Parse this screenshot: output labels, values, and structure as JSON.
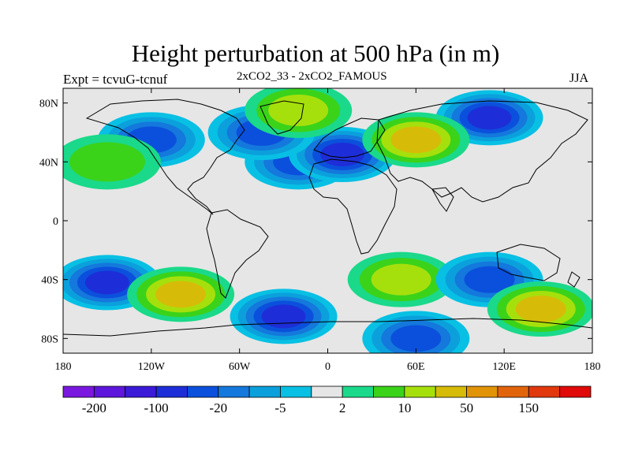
{
  "figure": {
    "title": "Height perturbation at 500 hPa (in m)",
    "left_label": "Expt = tcvuG-tcnuf",
    "center_label": "2xCO2_33 - 2xCO2_FAMOUS",
    "right_label": "JJA"
  },
  "map": {
    "projection": "cylindrical-equidistant",
    "lon_range": [
      -180,
      180
    ],
    "lat_range": [
      -90,
      90
    ],
    "background_color": "#e6e6e6",
    "lon_ticks": [
      {
        "value": -180,
        "label": "180"
      },
      {
        "value": -120,
        "label": "120W"
      },
      {
        "value": -60,
        "label": "60W"
      },
      {
        "value": 0,
        "label": "0"
      },
      {
        "value": 60,
        "label": "60E"
      },
      {
        "value": 120,
        "label": "120E"
      },
      {
        "value": 180,
        "label": "180"
      }
    ],
    "lat_ticks": [
      {
        "value": 80,
        "label": "80N"
      },
      {
        "value": 40,
        "label": "40N"
      },
      {
        "value": 0,
        "label": "0"
      },
      {
        "value": -40,
        "label": "40S"
      },
      {
        "value": -80,
        "label": "80S"
      }
    ]
  },
  "colorbar": {
    "colors": [
      "#7a18e0",
      "#5d16dc",
      "#3b1ad8",
      "#1d2ed8",
      "#0b50dc",
      "#1478dc",
      "#0ba0dc",
      "#08c0e4",
      "#e6e6e6",
      "#1ad98a",
      "#3bd21a",
      "#a6e00c",
      "#d6bc08",
      "#e29408",
      "#e2640a",
      "#e2380e",
      "#e00a0a"
    ],
    "labels": [
      "-200",
      "-100",
      "-20",
      "-5",
      "2",
      "10",
      "50",
      "150"
    ],
    "label_boundaries": [
      1,
      3,
      5,
      7,
      9,
      11,
      13,
      15
    ]
  },
  "features": [
    {
      "name": "nw-europe-low",
      "lon": -20,
      "lat": 40,
      "value": -30
    },
    {
      "name": "central-europe-low",
      "lon": 10,
      "lat": 45,
      "value": -60
    },
    {
      "name": "siberia-low",
      "lon": 110,
      "lat": 70,
      "value": -60
    },
    {
      "name": "n-america-low",
      "lon": -120,
      "lat": 55,
      "value": -20
    },
    {
      "name": "n-atlantic-low",
      "lon": -45,
      "lat": 60,
      "value": -20
    },
    {
      "name": "central-asia-high",
      "lon": 60,
      "lat": 55,
      "value": 40
    },
    {
      "name": "n-pacific-high",
      "lon": -150,
      "lat": 40,
      "value": 8
    },
    {
      "name": "arctic-high",
      "lon": -20,
      "lat": 75,
      "value": 10
    },
    {
      "name": "s-pacific-low",
      "lon": -150,
      "lat": -42,
      "value": -60
    },
    {
      "name": "s-america-high",
      "lon": -100,
      "lat": -50,
      "value": 40
    },
    {
      "name": "s-atlantic-low",
      "lon": -30,
      "lat": -65,
      "value": -60
    },
    {
      "name": "s-indian-high",
      "lon": 50,
      "lat": -40,
      "value": 12
    },
    {
      "name": "australia-low",
      "lon": 110,
      "lat": -40,
      "value": -30
    },
    {
      "name": "s-pacific-east-high",
      "lon": 145,
      "lat": -60,
      "value": 45
    },
    {
      "name": "antarctic-low",
      "lon": 60,
      "lat": -80,
      "value": -20
    }
  ]
}
